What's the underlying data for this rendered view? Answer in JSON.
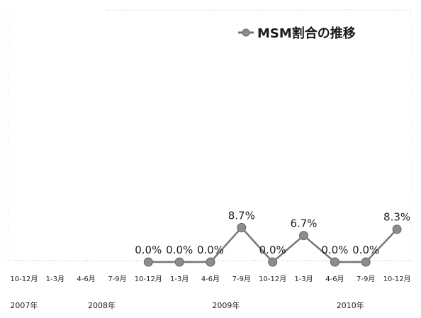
{
  "chart_data": {
    "type": "line",
    "title": "",
    "xlabel": "",
    "ylabel": "",
    "categories": [
      "10-12月",
      "1-3月",
      "4-6月",
      "7-9月",
      "10-12月",
      "1-3月",
      "4-6月",
      "7-9月",
      "10-12月",
      "1-3月",
      "4-6月",
      "7-9月",
      "10-12月"
    ],
    "year_groups": [
      {
        "label": "2007年",
        "start": 0,
        "span": 1
      },
      {
        "label": "2008年",
        "start": 1,
        "span": 4
      },
      {
        "label": "2009年",
        "start": 5,
        "span": 4
      },
      {
        "label": "2010年",
        "start": 9,
        "span": 4
      }
    ],
    "series": [
      {
        "name": "MSM割合の推移",
        "values": [
          null,
          null,
          null,
          null,
          0.0,
          0.0,
          0.0,
          8.7,
          0.0,
          6.7,
          0.0,
          0.0,
          8.3
        ],
        "labels": [
          null,
          null,
          null,
          null,
          "0.0%",
          "0.0%",
          "0.0%",
          "8.7%",
          "0.0%",
          "6.7%",
          "0.0%",
          "0.0%",
          "8.3%"
        ],
        "color": "#777777",
        "marker_color": "#8c8c8c"
      }
    ],
    "ylim": [
      0,
      60
    ],
    "grid": false,
    "legend": "top-right"
  }
}
